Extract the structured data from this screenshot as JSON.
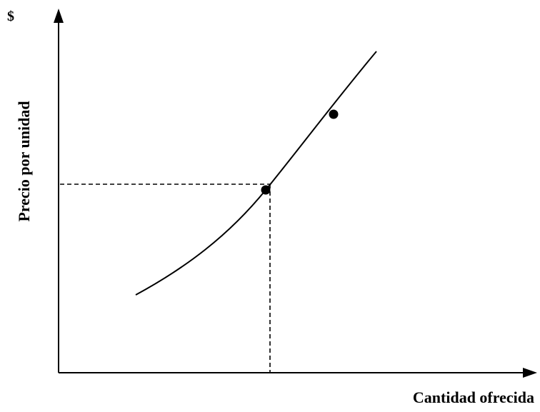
{
  "diagram": {
    "currency_symbol": "$",
    "y_axis_label": "Precio por unidad",
    "x_axis_label": "Cantidad ofrecida",
    "curve": "supply-curve",
    "points": [
      "point-on-curve-reference",
      "point-on-curve-upper"
    ],
    "guides": [
      "dashed-horizontal-guide",
      "dashed-vertical-guide"
    ]
  },
  "colors": {
    "ink": "#000000",
    "background": "#ffffff"
  }
}
